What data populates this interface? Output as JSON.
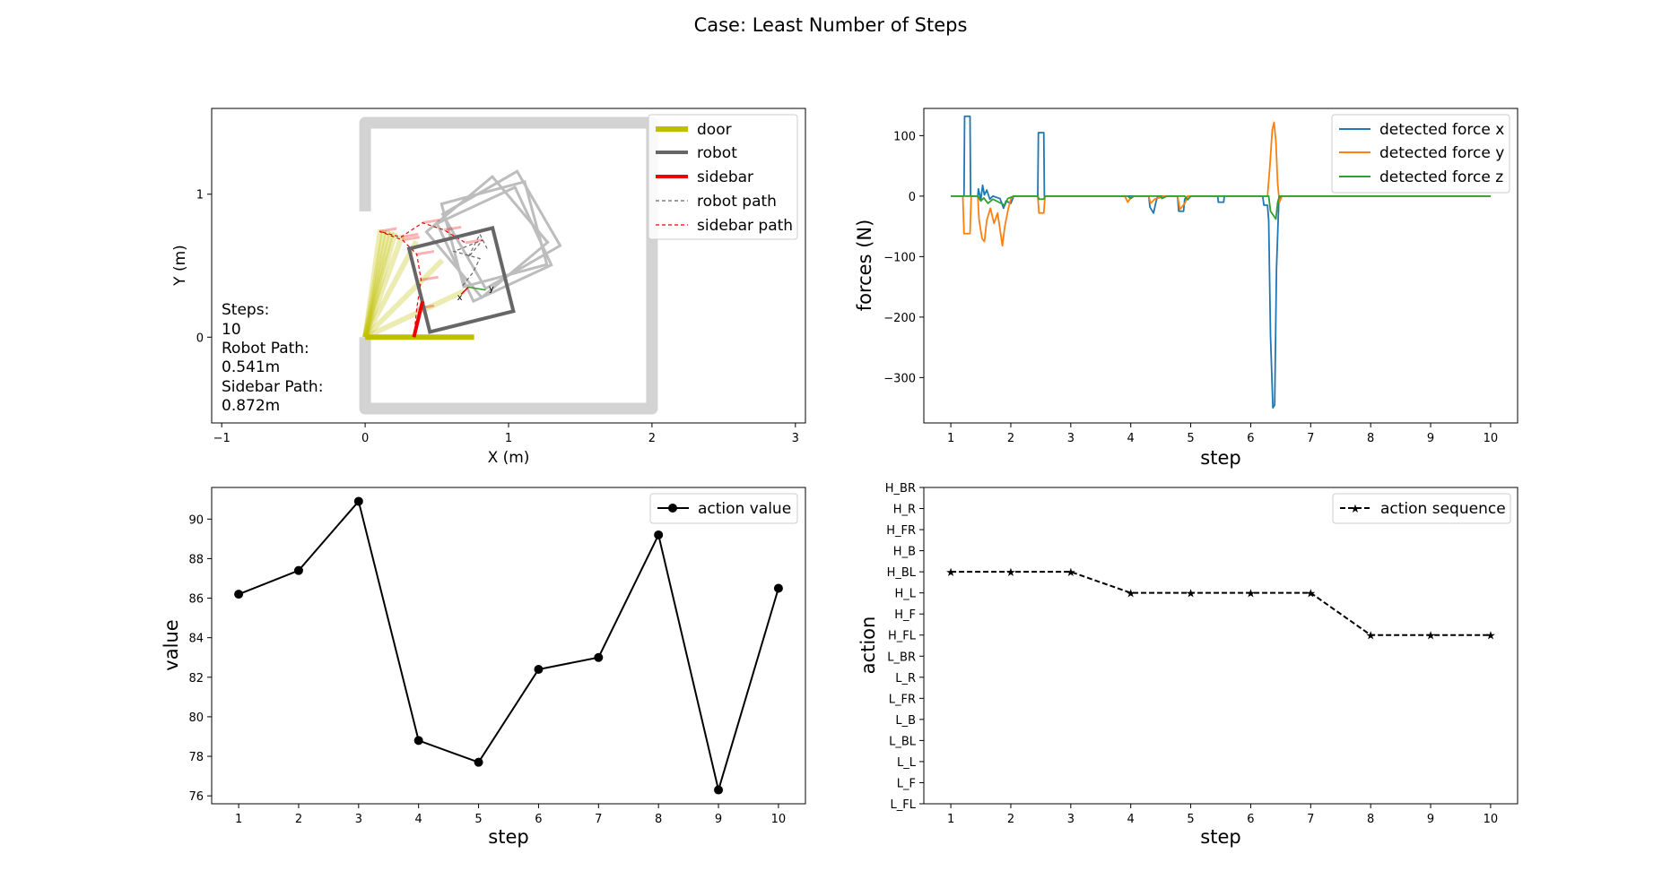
{
  "figure": {
    "title": "Case: Least Number of Steps"
  },
  "chart_data": [
    {
      "type": "line",
      "panel": "trajectory",
      "xlabel": "X (m)",
      "ylabel": "Y (m)",
      "xlim": [
        -1.07,
        3.07
      ],
      "ylim": [
        -0.6,
        1.6
      ],
      "xticks": [
        -1,
        0,
        1,
        2,
        3
      ],
      "yticks": [
        0,
        1
      ],
      "legend": {
        "position": "top-right",
        "entries": [
          {
            "name": "door",
            "color": "#bfbf00",
            "style": "solid"
          },
          {
            "name": "robot",
            "color": "#666666",
            "style": "solid"
          },
          {
            "name": "sidebar",
            "color": "#ee0000",
            "style": "solid"
          },
          {
            "name": "robot path",
            "color": "#666666",
            "style": "dashed"
          },
          {
            "name": "sidebar path",
            "color": "#ee0000",
            "style": "dashed"
          }
        ]
      },
      "annotation": [
        "Steps:",
        "10",
        "Robot Path:",
        "0.541m",
        "Sidebar Path:",
        "0.872m"
      ],
      "door_frame": [
        [
          0,
          0.88
        ],
        [
          0,
          1.5
        ],
        [
          2.0,
          1.5
        ],
        [
          2.0,
          -0.5
        ],
        [
          0,
          -0.5
        ],
        [
          0,
          0.0
        ]
      ],
      "door_hinge": [
        0,
        0
      ],
      "door_length": 0.76,
      "door_angles_deg": [
        0,
        25,
        45,
        62,
        70,
        74,
        76,
        78,
        80,
        82
      ],
      "sidebar_path": [
        [
          0.34,
          0
        ],
        [
          0.36,
          0.2
        ],
        [
          0.39,
          0.4
        ],
        [
          0.36,
          0.58
        ],
        [
          0.26,
          0.68
        ],
        [
          0.1,
          0.74
        ],
        [
          0.25,
          0.7
        ],
        [
          0.4,
          0.8
        ],
        [
          0.55,
          0.75
        ],
        [
          0.7,
          0.66
        ]
      ],
      "robot_path": [
        [
          0.68,
          0.36
        ],
        [
          0.75,
          0.45
        ],
        [
          0.8,
          0.55
        ],
        [
          0.62,
          0.6
        ],
        [
          0.82,
          0.68
        ],
        [
          0.72,
          0.56
        ],
        [
          0.8,
          0.72
        ],
        [
          0.85,
          0.62
        ]
      ],
      "robot_poses": [
        {
          "cx": 0.9,
          "cy": 0.65,
          "angle": 25
        },
        {
          "cx": 0.95,
          "cy": 0.75,
          "angle": 30
        },
        {
          "cx": 0.85,
          "cy": 0.7,
          "angle": 40
        },
        {
          "cx": 0.9,
          "cy": 0.72,
          "angle": 15
        }
      ],
      "robot_current": {
        "cx": 0.67,
        "cy": 0.4,
        "angle": 14
      },
      "sidebar_current": [
        [
          0.34,
          0
        ],
        [
          0.4,
          0.25
        ]
      ],
      "frame_labels": [
        "x",
        "y"
      ],
      "colors": {
        "frame": "#d3d3d3",
        "door": "#bfbf00",
        "robot": "#666666",
        "sidebar": "#ee0000"
      }
    },
    {
      "type": "line",
      "panel": "forces",
      "xlabel": "step",
      "ylabel": "forces (N)",
      "xlim": [
        0.55,
        10.45
      ],
      "ylim": [
        -375,
        145
      ],
      "xticks": [
        1,
        2,
        3,
        4,
        5,
        6,
        7,
        8,
        9,
        10
      ],
      "yticks": [
        -300,
        -200,
        -100,
        0,
        100
      ],
      "legend": {
        "position": "top-right"
      },
      "series": [
        {
          "name": "detected force x",
          "color": "#1f77b4",
          "points": [
            [
              1,
              0
            ],
            [
              1.22,
              0
            ],
            [
              1.23,
              132
            ],
            [
              1.32,
              132
            ],
            [
              1.33,
              0
            ],
            [
              1.45,
              0
            ],
            [
              1.46,
              12
            ],
            [
              1.5,
              -6
            ],
            [
              1.53,
              18
            ],
            [
              1.56,
              2
            ],
            [
              1.6,
              10
            ],
            [
              1.65,
              -5
            ],
            [
              1.7,
              0
            ],
            [
              1.82,
              -4
            ],
            [
              1.88,
              -20
            ],
            [
              1.92,
              -8
            ],
            [
              2.0,
              -12
            ],
            [
              2.05,
              0
            ],
            [
              2.45,
              0
            ],
            [
              2.46,
              105
            ],
            [
              2.55,
              105
            ],
            [
              2.56,
              0
            ],
            [
              4.3,
              0
            ],
            [
              4.32,
              -18
            ],
            [
              4.38,
              -28
            ],
            [
              4.42,
              -10
            ],
            [
              4.45,
              0
            ],
            [
              4.78,
              0
            ],
            [
              4.8,
              -25
            ],
            [
              4.88,
              -25
            ],
            [
              4.9,
              -5
            ],
            [
              4.95,
              0
            ],
            [
              5.45,
              0
            ],
            [
              5.46,
              -10
            ],
            [
              5.55,
              -10
            ],
            [
              5.56,
              0
            ],
            [
              6.2,
              0
            ],
            [
              6.22,
              -15
            ],
            [
              6.28,
              -15
            ],
            [
              6.3,
              -40
            ],
            [
              6.33,
              -230
            ],
            [
              6.37,
              -350
            ],
            [
              6.4,
              -345
            ],
            [
              6.43,
              -120
            ],
            [
              6.47,
              -5
            ],
            [
              6.5,
              0
            ],
            [
              10,
              0
            ]
          ]
        },
        {
          "name": "detected force y",
          "color": "#ff7f0e",
          "points": [
            [
              1,
              0
            ],
            [
              1.2,
              0
            ],
            [
              1.22,
              -62
            ],
            [
              1.32,
              -62
            ],
            [
              1.34,
              0
            ],
            [
              1.45,
              0
            ],
            [
              1.47,
              -38
            ],
            [
              1.52,
              -70
            ],
            [
              1.56,
              -75
            ],
            [
              1.6,
              -40
            ],
            [
              1.66,
              -20
            ],
            [
              1.72,
              -45
            ],
            [
              1.78,
              -28
            ],
            [
              1.82,
              -55
            ],
            [
              1.86,
              -82
            ],
            [
              1.9,
              -50
            ],
            [
              1.96,
              -20
            ],
            [
              2.0,
              -5
            ],
            [
              2.05,
              0
            ],
            [
              2.45,
              0
            ],
            [
              2.47,
              -28
            ],
            [
              2.55,
              -28
            ],
            [
              2.57,
              0
            ],
            [
              3.9,
              0
            ],
            [
              3.95,
              -10
            ],
            [
              4.0,
              -3
            ],
            [
              4.05,
              0
            ],
            [
              4.3,
              0
            ],
            [
              4.33,
              -12
            ],
            [
              4.4,
              -5
            ],
            [
              4.5,
              -2
            ],
            [
              4.55,
              0
            ],
            [
              4.78,
              0
            ],
            [
              4.82,
              -22
            ],
            [
              4.9,
              -12
            ],
            [
              4.95,
              0
            ],
            [
              6.28,
              0
            ],
            [
              6.32,
              50
            ],
            [
              6.36,
              110
            ],
            [
              6.39,
              122
            ],
            [
              6.42,
              90
            ],
            [
              6.45,
              20
            ],
            [
              6.48,
              -10
            ],
            [
              6.52,
              0
            ],
            [
              10,
              0
            ]
          ]
        },
        {
          "name": "detected force z",
          "color": "#2ca02c",
          "points": [
            [
              1,
              0
            ],
            [
              1.45,
              0
            ],
            [
              1.5,
              -8
            ],
            [
              1.55,
              -3
            ],
            [
              1.62,
              -12
            ],
            [
              1.7,
              -5
            ],
            [
              1.8,
              -10
            ],
            [
              1.9,
              -15
            ],
            [
              1.95,
              -4
            ],
            [
              2.05,
              0
            ],
            [
              2.45,
              0
            ],
            [
              2.47,
              -5
            ],
            [
              2.55,
              -5
            ],
            [
              2.57,
              0
            ],
            [
              3.95,
              0
            ],
            [
              4.0,
              -4
            ],
            [
              4.05,
              0
            ],
            [
              4.5,
              0
            ],
            [
              4.52,
              -4
            ],
            [
              4.6,
              0
            ],
            [
              4.9,
              0
            ],
            [
              4.95,
              -6
            ],
            [
              5.0,
              0
            ],
            [
              6.3,
              0
            ],
            [
              6.33,
              -25
            ],
            [
              6.38,
              -32
            ],
            [
              6.42,
              -38
            ],
            [
              6.45,
              -10
            ],
            [
              6.48,
              0
            ],
            [
              10,
              0
            ]
          ]
        }
      ]
    },
    {
      "type": "line",
      "panel": "value",
      "xlabel": "step",
      "ylabel": "value",
      "xlim": [
        0.55,
        10.45
      ],
      "ylim": [
        75.6,
        91.6
      ],
      "xticks": [
        1,
        2,
        3,
        4,
        5,
        6,
        7,
        8,
        9,
        10
      ],
      "yticks": [
        76,
        78,
        80,
        82,
        84,
        86,
        88,
        90
      ],
      "legend": {
        "position": "top-right"
      },
      "x": [
        1,
        2,
        3,
        4,
        5,
        6,
        7,
        8,
        9,
        10
      ],
      "series": [
        {
          "name": "action value",
          "color": "#000000",
          "marker": "circle",
          "values": [
            86.2,
            87.4,
            90.9,
            78.8,
            77.7,
            82.4,
            83.0,
            89.2,
            76.3,
            86.5
          ]
        }
      ]
    },
    {
      "type": "line",
      "panel": "actions",
      "xlabel": "step",
      "ylabel": "action",
      "xlim": [
        0.55,
        10.45
      ],
      "ylim": [
        0,
        15
      ],
      "xticks": [
        1,
        2,
        3,
        4,
        5,
        6,
        7,
        8,
        9,
        10
      ],
      "categories": [
        "L_FL",
        "L_F",
        "L_L",
        "L_BL",
        "L_B",
        "L_FR",
        "L_R",
        "L_BR",
        "H_FL",
        "H_F",
        "H_L",
        "H_BL",
        "H_B",
        "H_FR",
        "H_R",
        "H_BR"
      ],
      "legend": {
        "position": "top-right"
      },
      "x": [
        1,
        2,
        3,
        4,
        5,
        6,
        7,
        8,
        9,
        10
      ],
      "series": [
        {
          "name": "action sequence",
          "color": "#000000",
          "style": "dashed",
          "marker": "star",
          "values": [
            "H_BL",
            "H_BL",
            "H_BL",
            "H_L",
            "H_L",
            "H_L",
            "H_L",
            "H_FL",
            "H_FL",
            "H_FL"
          ]
        }
      ]
    }
  ]
}
